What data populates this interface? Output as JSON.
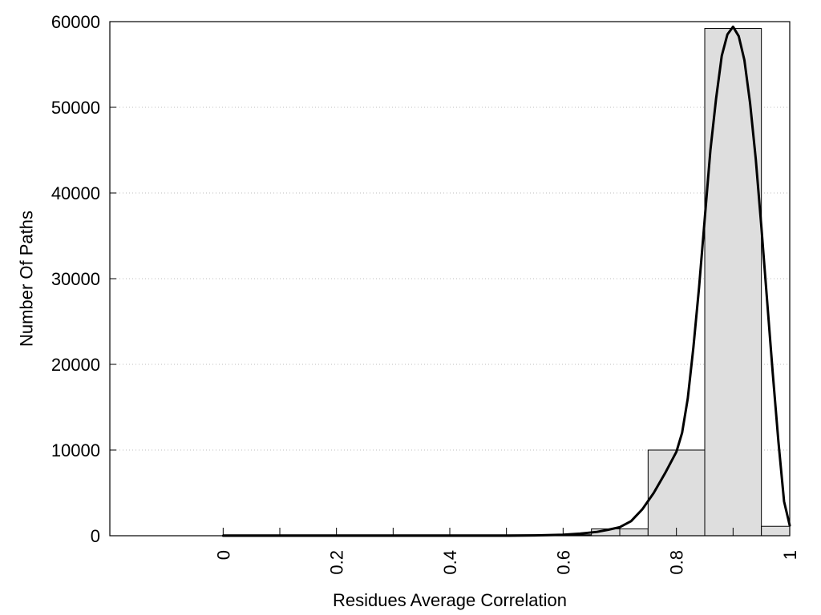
{
  "chart_data": {
    "type": "bar",
    "xlabel": "Residues Average Correlation",
    "ylabel": "Number Of Paths",
    "xlim": [
      -0.2,
      1
    ],
    "ylim": [
      0,
      60000
    ],
    "x_ticks": [
      "0",
      "0.2",
      "0.4",
      "0.6",
      "0.8",
      "1"
    ],
    "x_tick_values": [
      0,
      0.2,
      0.4,
      0.6,
      0.8,
      1
    ],
    "y_ticks": [
      "0",
      "10000",
      "20000",
      "30000",
      "40000",
      "50000",
      "60000"
    ],
    "y_tick_values": [
      0,
      10000,
      20000,
      30000,
      40000,
      50000,
      60000
    ],
    "grid": "horizontal dotted",
    "bars": [
      {
        "x0": 0.0,
        "x1": 0.1,
        "value": 0
      },
      {
        "x0": 0.1,
        "x1": 0.2,
        "value": 0
      },
      {
        "x0": 0.2,
        "x1": 0.3,
        "value": 0
      },
      {
        "x0": 0.3,
        "x1": 0.4,
        "value": 0
      },
      {
        "x0": 0.4,
        "x1": 0.5,
        "value": 0
      },
      {
        "x0": 0.5,
        "x1": 0.6,
        "value": 0
      },
      {
        "x0": 0.6,
        "x1": 0.65,
        "value": 0
      },
      {
        "x0": 0.65,
        "x1": 0.75,
        "value": 800
      },
      {
        "x0": 0.75,
        "x1": 0.85,
        "value": 10000
      },
      {
        "x0": 0.85,
        "x1": 0.95,
        "value": 59200
      },
      {
        "x0": 0.95,
        "x1": 1.0,
        "value": 1100
      }
    ],
    "curve": {
      "x": [
        0,
        0.1,
        0.2,
        0.3,
        0.4,
        0.5,
        0.55,
        0.6,
        0.63,
        0.66,
        0.68,
        0.7,
        0.72,
        0.74,
        0.76,
        0.78,
        0.8,
        0.81,
        0.82,
        0.83,
        0.84,
        0.85,
        0.86,
        0.87,
        0.88,
        0.89,
        0.9,
        0.91,
        0.92,
        0.93,
        0.94,
        0.95,
        0.96,
        0.97,
        0.98,
        0.99,
        1.0
      ],
      "y": [
        0,
        0,
        0,
        0,
        0,
        0,
        30,
        120,
        250,
        450,
        700,
        1000,
        1700,
        3100,
        5000,
        7300,
        9800,
        12000,
        16000,
        22000,
        29000,
        37000,
        45000,
        51000,
        56000,
        58500,
        59400,
        58300,
        55500,
        50500,
        44000,
        36000,
        27500,
        19000,
        11000,
        4000,
        1200
      ]
    }
  }
}
